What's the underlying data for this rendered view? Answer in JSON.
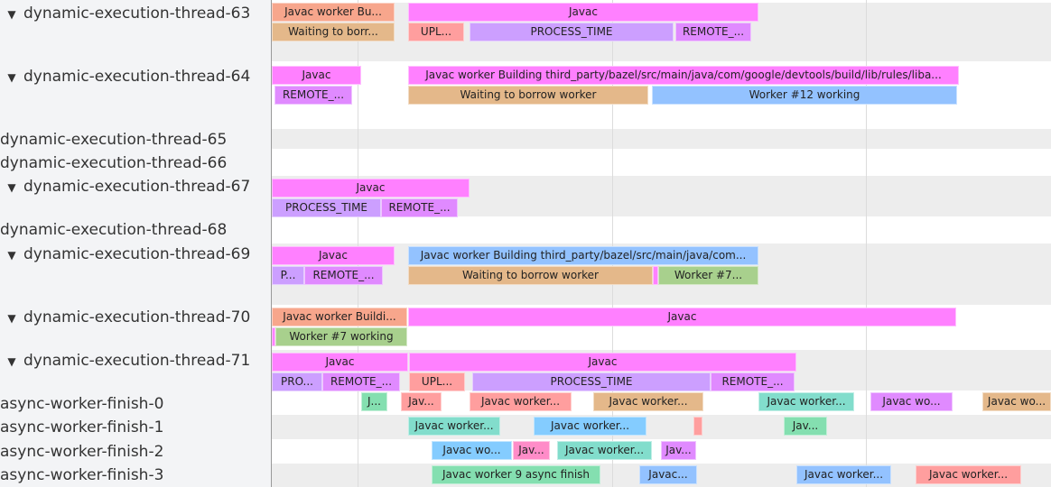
{
  "colors": {
    "pink": "#ff80ff",
    "salmon": "#f7a68c",
    "tan": "#e4b88a",
    "red": "#ff9e9e",
    "lavender": "#cc9fff",
    "violet": "#e08aff",
    "blue": "#93c2ff",
    "sky": "#84ccff",
    "green": "#a8d08d",
    "mint": "#84dfb0",
    "teal": "#82ddcc",
    "rose": "#ff8cc8"
  },
  "tracks": [
    {
      "name": "dynamic-execution-thread-63",
      "expanded": true,
      "slices": [
        {
          "label": "Javac worker Bu...",
          "color": "salmon"
        },
        {
          "label": "Javac",
          "color": "pink"
        },
        {
          "label": "Waiting to borr...",
          "color": "tan"
        },
        {
          "label": "UPL...",
          "color": "red"
        },
        {
          "label": "PROCESS_TIME",
          "color": "lavender"
        },
        {
          "label": "REMOTE_...",
          "color": "violet"
        }
      ]
    },
    {
      "name": "dynamic-execution-thread-64",
      "expanded": true,
      "slices": [
        {
          "label": "Javac",
          "color": "pink"
        },
        {
          "label": "Javac worker Building third_party/bazel/src/main/java/com/google/devtools/build/lib/rules/liba...",
          "color": "pink"
        },
        {
          "label": "REMOTE_...",
          "color": "violet"
        },
        {
          "label": "Waiting to borrow worker",
          "color": "tan"
        },
        {
          "label": "Worker #12 working",
          "color": "blue"
        }
      ]
    },
    {
      "name": "dynamic-execution-thread-65",
      "expanded": false,
      "slices": []
    },
    {
      "name": "dynamic-execution-thread-66",
      "expanded": false,
      "slices": []
    },
    {
      "name": "dynamic-execution-thread-67",
      "expanded": true,
      "slices": [
        {
          "label": "Javac",
          "color": "pink"
        },
        {
          "label": "PROCESS_TIME",
          "color": "lavender"
        },
        {
          "label": "REMOTE_...",
          "color": "violet"
        }
      ]
    },
    {
      "name": "dynamic-execution-thread-68",
      "expanded": false,
      "slices": []
    },
    {
      "name": "dynamic-execution-thread-69",
      "expanded": true,
      "slices": [
        {
          "label": "Javac",
          "color": "pink"
        },
        {
          "label": "Javac worker Building third_party/bazel/src/main/java/com...",
          "color": "blue"
        },
        {
          "label": "P...",
          "color": "lavender"
        },
        {
          "label": "REMOTE_...",
          "color": "violet"
        },
        {
          "label": "Waiting to borrow worker",
          "color": "tan"
        },
        {
          "label": "",
          "color": "pink"
        },
        {
          "label": "Worker #7...",
          "color": "green"
        }
      ]
    },
    {
      "name": "dynamic-execution-thread-70",
      "expanded": true,
      "slices": [
        {
          "label": "Javac worker Buildi...",
          "color": "salmon"
        },
        {
          "label": "Javac",
          "color": "pink"
        },
        {
          "label": "",
          "color": "pink"
        },
        {
          "label": "Worker #7 working",
          "color": "green"
        }
      ]
    },
    {
      "name": "dynamic-execution-thread-71",
      "expanded": true,
      "slices": [
        {
          "label": "Javac",
          "color": "pink"
        },
        {
          "label": "Javac",
          "color": "pink"
        },
        {
          "label": "PRO...",
          "color": "lavender"
        },
        {
          "label": "REMOTE_...",
          "color": "violet"
        },
        {
          "label": "UPL...",
          "color": "red"
        },
        {
          "label": "PROCESS_TIME",
          "color": "lavender"
        },
        {
          "label": "REMOTE_...",
          "color": "violet"
        }
      ]
    },
    {
      "name": "async-worker-finish-0",
      "expanded": false,
      "slices": [
        {
          "label": "J...",
          "color": "mint"
        },
        {
          "label": "Jav...",
          "color": "red"
        },
        {
          "label": "Javac worker...",
          "color": "red"
        },
        {
          "label": "Javac worker...",
          "color": "tan"
        },
        {
          "label": "Javac worker...",
          "color": "teal"
        },
        {
          "label": "Javac wo...",
          "color": "violet"
        },
        {
          "label": "Javac wo...",
          "color": "tan"
        }
      ]
    },
    {
      "name": "async-worker-finish-1",
      "expanded": false,
      "slices": [
        {
          "label": "Javac worker...",
          "color": "teal"
        },
        {
          "label": "Javac worker...",
          "color": "sky"
        },
        {
          "label": "",
          "color": "red"
        },
        {
          "label": "Jav...",
          "color": "mint"
        }
      ]
    },
    {
      "name": "async-worker-finish-2",
      "expanded": false,
      "slices": [
        {
          "label": "Javac wo...",
          "color": "sky"
        },
        {
          "label": "Jav...",
          "color": "rose"
        },
        {
          "label": "Javac worker...",
          "color": "teal"
        },
        {
          "label": "Jav...",
          "color": "violet"
        }
      ]
    },
    {
      "name": "async-worker-finish-3",
      "expanded": false,
      "slices": [
        {
          "label": "Javac worker 9 async finish",
          "color": "mint"
        },
        {
          "label": "Javac...",
          "color": "blue"
        },
        {
          "label": "Javac worker...",
          "color": "blue"
        },
        {
          "label": "Javac worker...",
          "color": "red"
        }
      ]
    }
  ]
}
